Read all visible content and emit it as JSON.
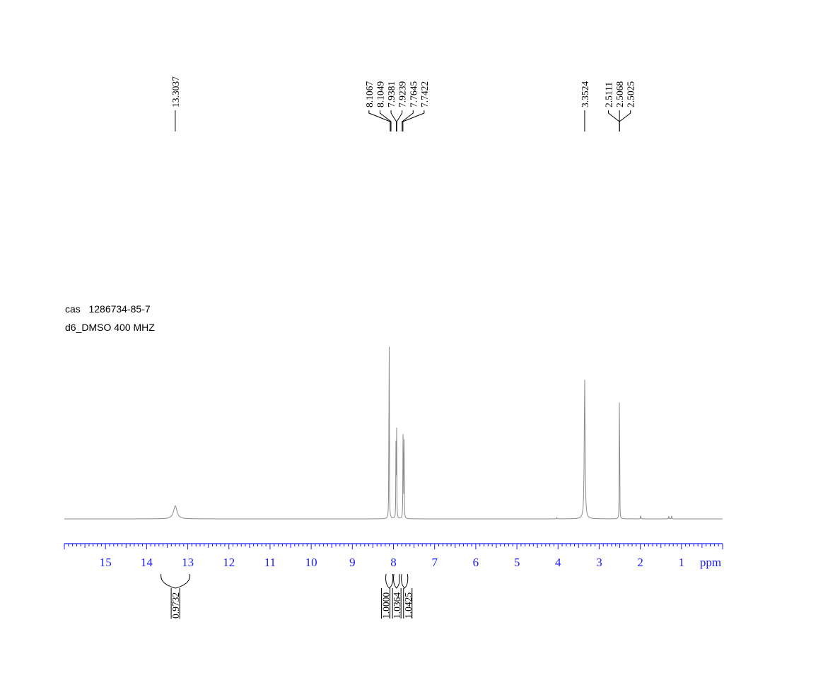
{
  "sample_info": {
    "cas_line": "cas   1286734-85-7",
    "solvent_line": "d6_DMSO 400 MHZ"
  },
  "colors": {
    "axis": "#1a1aff",
    "spectrum": "#8a8a8a",
    "labels": "#000000"
  },
  "chart_data": {
    "type": "line",
    "title": "",
    "xlabel": "ppm",
    "ylabel": "",
    "x_reversed": true,
    "xlim": [
      16.0,
      0.0
    ],
    "x_ticks": [
      15,
      14,
      13,
      12,
      11,
      10,
      9,
      8,
      7,
      6,
      5,
      4,
      3,
      2,
      1
    ],
    "x_unit": "ppm",
    "peaks": [
      {
        "ppm": 13.3037,
        "height": 0.07,
        "width": 0.05
      },
      {
        "ppm": 8.1067,
        "height": 0.98,
        "width": 0.004
      },
      {
        "ppm": 8.1049,
        "height": 0.45,
        "width": 0.004
      },
      {
        "ppm": 7.9381,
        "height": 0.46,
        "width": 0.004
      },
      {
        "ppm": 7.9239,
        "height": 0.5,
        "width": 0.004
      },
      {
        "ppm": 7.7645,
        "height": 0.78,
        "width": 0.004
      },
      {
        "ppm": 7.7422,
        "height": 0.4,
        "width": 0.004
      },
      {
        "ppm": 3.3524,
        "height": 0.75,
        "width": 0.012
      },
      {
        "ppm": 2.5111,
        "height": 0.32,
        "width": 0.003
      },
      {
        "ppm": 2.5068,
        "height": 0.55,
        "width": 0.003
      },
      {
        "ppm": 2.5025,
        "height": 0.32,
        "width": 0.003
      },
      {
        "ppm": 1.99,
        "height": 0.03,
        "width": 0.004
      },
      {
        "ppm": 1.31,
        "height": 0.02,
        "width": 0.005
      },
      {
        "ppm": 1.24,
        "height": 0.02,
        "width": 0.005
      },
      {
        "ppm": 4.03,
        "height": 0.006,
        "width": 0.006
      }
    ],
    "peak_labels": [
      {
        "group": 1,
        "values": [
          "13.3037"
        ],
        "target_ppm": 13.3037
      },
      {
        "group": 2,
        "values": [
          "8.1067",
          "8.1049",
          "7.9381",
          "7.9239",
          "7.7645",
          "7.7422"
        ],
        "target_ppm": [
          8.08,
          8.06,
          7.93,
          7.92,
          7.79,
          7.77
        ]
      },
      {
        "group": 3,
        "values": [
          "3.3524"
        ],
        "target_ppm": 3.3524
      },
      {
        "group": 4,
        "values": [
          "2.5111",
          "2.5068",
          "2.5025"
        ],
        "target_ppm": 2.5068
      }
    ],
    "integrals": [
      {
        "label": "0.9732",
        "from_ppm": 13.65,
        "to_ppm": 12.95
      },
      {
        "label": "1.0000",
        "from_ppm": 8.18,
        "to_ppm": 8.02
      },
      {
        "label": "1.0364",
        "from_ppm": 7.99,
        "to_ppm": 7.86
      },
      {
        "label": "1.0425",
        "from_ppm": 7.8,
        "to_ppm": 7.66
      }
    ]
  }
}
